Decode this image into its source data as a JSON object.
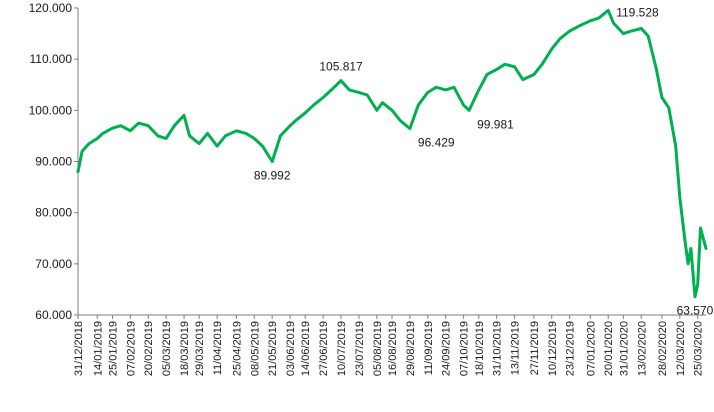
{
  "chart_data": {
    "type": "line",
    "title": "",
    "xlabel": "",
    "ylabel": "",
    "ylim": [
      60,
      120
    ],
    "grid": false,
    "legend": "none",
    "series_color": "#00b050",
    "y_ticks": [
      "60.000",
      "70.000",
      "80.000",
      "90.000",
      "100.000",
      "110.000",
      "120.000"
    ],
    "y_tick_values": [
      60,
      70,
      80,
      90,
      100,
      110,
      120
    ],
    "x_ticks": [
      "31/12/2018",
      "14/01/2019",
      "25/01/2019",
      "07/02/2019",
      "20/02/2019",
      "05/03/2019",
      "18/03/2019",
      "29/03/2019",
      "11/04/2019",
      "25/04/2019",
      "08/05/2019",
      "21/05/2019",
      "03/06/2019",
      "14/06/2019",
      "27/06/2019",
      "10/07/2019",
      "23/07/2019",
      "05/08/2019",
      "16/08/2019",
      "29/08/2019",
      "11/09/2019",
      "24/09/2019",
      "07/10/2019",
      "18/10/2019",
      "31/10/2019",
      "13/11/2019",
      "27/11/2019",
      "10/12/2019",
      "23/12/2019",
      "07/01/2020",
      "20/01/2020",
      "31/01/2020",
      "13/02/2020",
      "28/02/2020",
      "12/03/2020",
      "25/03/2020"
    ],
    "x": [
      "31/12/2018",
      "03/01/2019",
      "08/01/2019",
      "14/01/2019",
      "18/01/2019",
      "25/01/2019",
      "31/01/2019",
      "07/02/2019",
      "13/02/2019",
      "20/02/2019",
      "27/02/2019",
      "05/03/2019",
      "11/03/2019",
      "18/03/2019",
      "22/03/2019",
      "29/03/2019",
      "04/04/2019",
      "11/04/2019",
      "17/04/2019",
      "25/04/2019",
      "02/05/2019",
      "08/05/2019",
      "14/05/2019",
      "21/05/2019",
      "27/05/2019",
      "03/06/2019",
      "07/06/2019",
      "14/06/2019",
      "20/06/2019",
      "27/06/2019",
      "03/07/2019",
      "10/07/2019",
      "16/07/2019",
      "23/07/2019",
      "29/07/2019",
      "05/08/2019",
      "09/08/2019",
      "16/08/2019",
      "22/08/2019",
      "29/08/2019",
      "04/09/2019",
      "11/09/2019",
      "17/09/2019",
      "24/09/2019",
      "30/09/2019",
      "07/10/2019",
      "11/10/2019",
      "18/10/2019",
      "24/10/2019",
      "31/10/2019",
      "06/11/2019",
      "13/11/2019",
      "19/11/2019",
      "27/11/2019",
      "03/12/2019",
      "10/12/2019",
      "16/12/2019",
      "23/12/2019",
      "30/12/2019",
      "07/01/2020",
      "13/01/2020",
      "20/01/2020",
      "24/01/2020",
      "31/01/2020",
      "06/02/2020",
      "13/02/2020",
      "18/02/2020",
      "24/02/2020",
      "28/02/2020",
      "04/03/2020",
      "09/03/2020",
      "12/03/2020",
      "16/03/2020",
      "18/03/2020",
      "20/03/2020",
      "23/03/2020",
      "25/03/2020",
      "27/03/2020",
      "30/03/2020",
      "31/03/2020"
    ],
    "series": [
      {
        "values": [
          88.0,
          92.0,
          93.5,
          94.5,
          95.5,
          96.5,
          97.0,
          96.0,
          97.5,
          97.0,
          95.0,
          94.5,
          97.0,
          99.0,
          95.0,
          93.5,
          95.5,
          93.0,
          95.0,
          96.0,
          95.5,
          94.5,
          93.0,
          89.992,
          95.0,
          97.0,
          98.0,
          99.5,
          101.0,
          102.5,
          104.0,
          105.817,
          104.0,
          103.5,
          103.0,
          100.0,
          101.5,
          100.0,
          98.0,
          96.429,
          101.0,
          103.5,
          104.5,
          104.0,
          104.5,
          101.0,
          99.981,
          104.0,
          107.0,
          108.0,
          109.0,
          108.5,
          106.0,
          107.0,
          109.0,
          112.0,
          114.0,
          115.5,
          116.5,
          117.5,
          118.0,
          119.528,
          117.0,
          115.0,
          115.5,
          116.0,
          114.5,
          108.0,
          102.5,
          100.5,
          93.0,
          83.0,
          74.0,
          70.0,
          73.0,
          63.57,
          66.0,
          77.0,
          74.0,
          73.0
        ]
      }
    ],
    "annotations": [
      {
        "text": "105.817",
        "x": "10/07/2019",
        "y": 105.817,
        "pos": "above"
      },
      {
        "text": "89.992",
        "x": "21/05/2019",
        "y": 89.992,
        "pos": "below"
      },
      {
        "text": "96.429",
        "x": "29/08/2019",
        "y": 96.429,
        "pos": "below-right"
      },
      {
        "text": "99.981",
        "x": "11/10/2019",
        "y": 99.981,
        "pos": "below-right"
      },
      {
        "text": "119.528",
        "x": "20/01/2020",
        "y": 119.528,
        "pos": "right"
      },
      {
        "text": "63.570",
        "x": "23/03/2020",
        "y": 63.57,
        "pos": "below"
      }
    ]
  }
}
